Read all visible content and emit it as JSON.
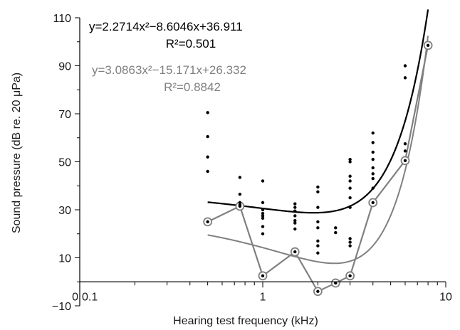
{
  "chart_data": {
    "type": "scatter",
    "xlabel": "Hearing test frequency (kHz)",
    "ylabel": "Sound pressure (dB re. 20 μPa)",
    "x_scale": "log",
    "xlim": [
      0.1,
      10
    ],
    "ylim": [
      -10,
      110
    ],
    "x_ticks": [
      {
        "value": 0.1,
        "label": "0.1"
      },
      {
        "value": 1,
        "label": "1"
      },
      {
        "value": 10,
        "label": "10"
      }
    ],
    "y_ticks": [
      {
        "value": -10,
        "label": "−10"
      },
      {
        "value": 10,
        "label": "10"
      },
      {
        "value": 30,
        "label": "30"
      },
      {
        "value": 50,
        "label": "50"
      },
      {
        "value": 70,
        "label": "70"
      },
      {
        "value": 90,
        "label": "90"
      },
      {
        "value": 110,
        "label": "110"
      }
    ],
    "zero_label": "0",
    "grid": false,
    "colors": {
      "individual": "#000000",
      "median": "#808080"
    },
    "equations": [
      {
        "equation": "y=2.2714x²−8.6046x+36.911",
        "r2": "R²=0.501",
        "color": "#000000"
      },
      {
        "equation": "y=3.0863x²−15.171x+26.332",
        "r2": "R²=0.8842",
        "color": "#808080"
      }
    ],
    "series": [
      {
        "style": "dots",
        "points": [
          [
            0.5,
            70.5
          ],
          [
            0.5,
            60.5
          ],
          [
            0.5,
            52
          ],
          [
            0.5,
            46
          ],
          [
            0.5,
            25
          ],
          [
            0.75,
            43.5
          ],
          [
            0.75,
            36.5
          ],
          [
            0.75,
            33
          ],
          [
            0.75,
            32
          ],
          [
            0.75,
            31.5
          ],
          [
            1,
            42
          ],
          [
            1,
            33
          ],
          [
            1,
            30
          ],
          [
            1,
            28.5
          ],
          [
            1,
            27.5
          ],
          [
            1,
            26.5
          ],
          [
            1,
            23
          ],
          [
            1,
            20
          ],
          [
            1,
            2.5
          ],
          [
            1.5,
            32.5
          ],
          [
            1.5,
            31
          ],
          [
            1.5,
            29.5
          ],
          [
            1.5,
            27.5
          ],
          [
            1.5,
            25.5
          ],
          [
            1.5,
            24.5
          ],
          [
            1.5,
            22
          ],
          [
            1.5,
            12.5
          ],
          [
            2,
            39.5
          ],
          [
            2,
            37.5
          ],
          [
            2,
            31
          ],
          [
            2,
            25
          ],
          [
            2,
            22.5
          ],
          [
            2,
            17
          ],
          [
            2,
            15
          ],
          [
            2,
            12
          ],
          [
            2,
            -4
          ],
          [
            2.5,
            22.5
          ],
          [
            2.5,
            20.5
          ],
          [
            2.5,
            -0.5
          ],
          [
            3,
            51
          ],
          [
            3,
            50
          ],
          [
            3,
            44
          ],
          [
            3,
            42
          ],
          [
            3,
            39
          ],
          [
            3,
            35
          ],
          [
            3,
            31
          ],
          [
            3,
            18
          ],
          [
            3,
            16.5
          ],
          [
            3,
            15
          ],
          [
            3,
            2.5
          ],
          [
            4,
            62
          ],
          [
            4,
            58
          ],
          [
            4,
            54
          ],
          [
            4,
            51
          ],
          [
            4,
            47.5
          ],
          [
            4,
            45
          ],
          [
            4,
            43
          ],
          [
            4,
            39
          ],
          [
            4,
            33
          ],
          [
            6,
            90
          ],
          [
            6,
            85
          ],
          [
            6,
            57.5
          ],
          [
            6,
            54.5
          ],
          [
            6,
            50.5
          ],
          [
            8,
            98.5
          ]
        ]
      },
      {
        "style": "circled-line",
        "points": [
          [
            0.5,
            25
          ],
          [
            0.75,
            31.5
          ],
          [
            1,
            2.5
          ],
          [
            1.5,
            12.5
          ],
          [
            2,
            -4
          ],
          [
            2.5,
            -0.5
          ],
          [
            3,
            2.5
          ],
          [
            4,
            33
          ],
          [
            6,
            50.5
          ],
          [
            8,
            98.5
          ]
        ]
      }
    ],
    "trendlines": [
      {
        "a": 2.2714,
        "b": -8.6046,
        "c": 36.911,
        "color": "#000000",
        "x_range": [
          0.5,
          8
        ]
      },
      {
        "a": 3.0863,
        "b": -15.171,
        "c": 26.332,
        "color": "#808080",
        "x_range": [
          0.5,
          8
        ]
      }
    ]
  }
}
